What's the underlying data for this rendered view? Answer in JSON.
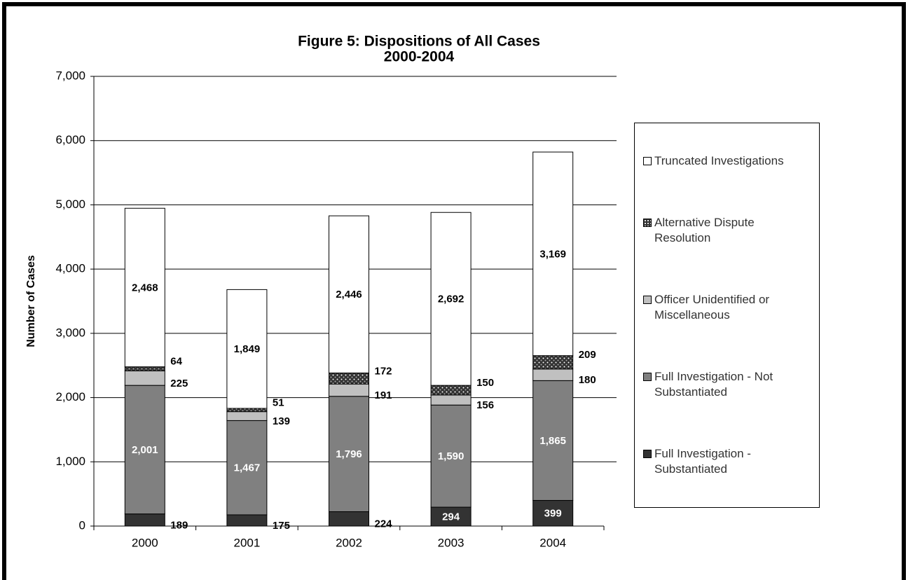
{
  "chart_data": {
    "type": "stacked_bar",
    "title": "Figure 5: Dispositions of All Cases",
    "subtitle": "2000-2004",
    "y_label": "Number of Cases",
    "categories": [
      "2000",
      "2001",
      "2002",
      "2003",
      "2004"
    ],
    "series": [
      {
        "name": "Full Investigation - Substantiated",
        "color": "#333333",
        "values": [
          189,
          175,
          224,
          294,
          399
        ]
      },
      {
        "name": "Full Investigation - Not Substantiated",
        "color": "#808080",
        "values": [
          2001,
          1467,
          1796,
          1590,
          1865
        ],
        "value_labels": [
          "2,001",
          "1,467",
          "1,796",
          "1,590",
          "1,865"
        ]
      },
      {
        "name": "Officer Unidentified or Miscellaneous",
        "color": "#c0c0c0",
        "values": [
          225,
          139,
          191,
          156,
          180
        ]
      },
      {
        "name": "Alternative Dispute Resolution",
        "color": "#333333",
        "pattern": "dotted",
        "values": [
          64,
          51,
          172,
          150,
          209
        ]
      },
      {
        "name": "Truncated Investigations",
        "color": "#ffffff",
        "values": [
          2468,
          1849,
          2446,
          2692,
          3169
        ],
        "value_labels": [
          "2,468",
          "1,849",
          "2,446",
          "2,692",
          "3,169"
        ]
      }
    ],
    "ylim": [
      0,
      7000
    ],
    "yticks": [
      0,
      {
        "value": 1000,
        "label": "1,000"
      },
      {
        "value": 2000,
        "label": "2,000"
      },
      {
        "value": 3000,
        "label": "3,000"
      },
      {
        "value": 4000,
        "label": "4,000"
      },
      {
        "value": 5000,
        "label": "5,000"
      },
      {
        "value": 6000,
        "label": "6,000"
      },
      {
        "value": 7000,
        "label": "7,000"
      }
    ],
    "grid": true,
    "legend": "right"
  }
}
